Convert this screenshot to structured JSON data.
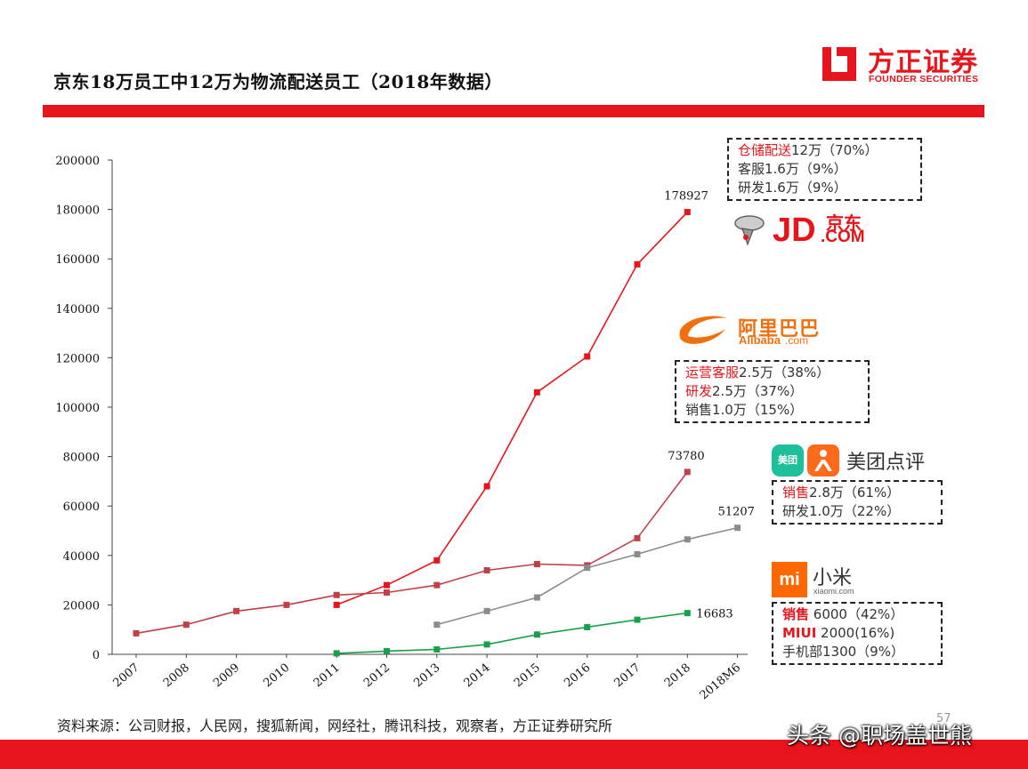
{
  "title": "京东18万员工中12万为物流配送员工（2018年数据）",
  "logo": {
    "name": "方正证券",
    "subtitle": "FOUNDER SECURITIES"
  },
  "source": "资料来源：公司财报，人民网，搜狐新闻，网经社，腾讯科技，观察者，方正证券研究所",
  "page_number": "57",
  "watermark": "头条 @职场盖世熊",
  "brands": {
    "jd": {
      "text_main": "JD",
      "text_sub": ".COM",
      "text_cn": "京东"
    },
    "alibaba": {
      "text_cn": "阿里巴巴",
      "text_en": "Alibaba",
      "text_dom": ".com"
    },
    "meituan": {
      "icon_text": "美团",
      "text_cn": "美团点评"
    },
    "xiaomi": {
      "icon_text": "mi",
      "text_cn": "小米",
      "text_en": "xiaomi.com"
    }
  },
  "boxes": {
    "jd": [
      {
        "key": "仓储配送",
        "rest": "12万（70%）"
      },
      {
        "key": "",
        "rest": "客服1.6万（9%）"
      },
      {
        "key": "",
        "rest": "研发1.6万（9%）"
      }
    ],
    "alibaba": [
      {
        "key": "运营客服",
        "rest": "2.5万（38%）"
      },
      {
        "key": "研发",
        "rest": "2.5万（37%）"
      },
      {
        "key": "",
        "rest": "销售1.0万（15%）"
      }
    ],
    "meituan": [
      {
        "key": "销售",
        "rest": "2.8万（61%）"
      },
      {
        "key": "",
        "rest": "研发1.0万（22%）"
      }
    ],
    "xiaomi": [
      {
        "key": "销售",
        "rest": " 6000（42%）"
      },
      {
        "key": "MIUI",
        "rest": " 2000(16%)"
      },
      {
        "key": "",
        "rest": "手机部1300（9%）"
      }
    ]
  },
  "colors": {
    "accent": "#e8141c",
    "jd": "#e8141c",
    "alibaba": "#c0404a",
    "meituan": "#8c8c8c",
    "xiaomi": "#1aa04c"
  },
  "chart_data": {
    "type": "line",
    "categories": [
      "2007",
      "2008",
      "2009",
      "2010",
      "2011",
      "2012",
      "2013",
      "2014",
      "2015",
      "2016",
      "2017",
      "2018",
      "2018M6"
    ],
    "ylim": [
      0,
      200000
    ],
    "yticks": [
      0,
      20000,
      40000,
      60000,
      80000,
      100000,
      120000,
      140000,
      160000,
      180000,
      200000
    ],
    "grid": false,
    "series": [
      {
        "key": "jd",
        "values": [
          null,
          null,
          null,
          null,
          20000,
          28000,
          38000,
          68000,
          106000,
          120500,
          157800,
          178927,
          null
        ]
      },
      {
        "key": "alibaba",
        "values": [
          8500,
          12000,
          17500,
          20000,
          24000,
          25000,
          28000,
          34000,
          36500,
          36000,
          47000,
          73780,
          null
        ]
      },
      {
        "key": "meituan",
        "values": [
          null,
          null,
          null,
          null,
          null,
          null,
          12000,
          17500,
          23000,
          35000,
          40500,
          46500,
          51207
        ]
      },
      {
        "key": "xiaomi",
        "values": [
          null,
          null,
          null,
          null,
          400,
          1300,
          2000,
          4000,
          8000,
          11000,
          14000,
          16683,
          null
        ]
      }
    ],
    "data_labels": [
      {
        "series": "jd",
        "category": "2018",
        "text": "178927"
      },
      {
        "series": "alibaba",
        "category": "2018",
        "text": "73780"
      },
      {
        "series": "meituan",
        "category": "2018M6",
        "text": "51207"
      },
      {
        "series": "xiaomi",
        "category": "2018",
        "text": "16683"
      }
    ]
  }
}
